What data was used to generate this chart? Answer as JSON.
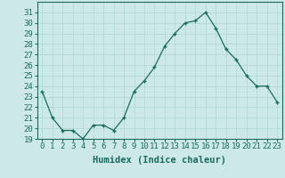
{
  "title": "",
  "xlabel": "Humidex (Indice chaleur)",
  "ylabel": "",
  "x_values": [
    0,
    1,
    2,
    3,
    4,
    5,
    6,
    7,
    8,
    9,
    10,
    11,
    12,
    13,
    14,
    15,
    16,
    17,
    18,
    19,
    20,
    21,
    22,
    23
  ],
  "y_values": [
    23.5,
    21.0,
    19.8,
    19.8,
    19.0,
    20.3,
    20.3,
    19.8,
    21.0,
    23.5,
    24.5,
    25.8,
    27.8,
    29.0,
    30.0,
    30.2,
    31.0,
    29.5,
    27.5,
    26.5,
    25.0,
    24.0,
    24.0,
    22.5
  ],
  "ylim": [
    19,
    32
  ],
  "xlim": [
    -0.5,
    23.5
  ],
  "yticks": [
    19,
    20,
    21,
    22,
    23,
    24,
    25,
    26,
    27,
    28,
    29,
    30,
    31
  ],
  "xticks": [
    0,
    1,
    2,
    3,
    4,
    5,
    6,
    7,
    8,
    9,
    10,
    11,
    12,
    13,
    14,
    15,
    16,
    17,
    18,
    19,
    20,
    21,
    22,
    23
  ],
  "line_color": "#1a6b5e",
  "marker": "+",
  "bg_color": "#cce8e8",
  "grid_color": "#aed4d4",
  "tick_label_fontsize": 6.5,
  "xlabel_fontsize": 7.5
}
